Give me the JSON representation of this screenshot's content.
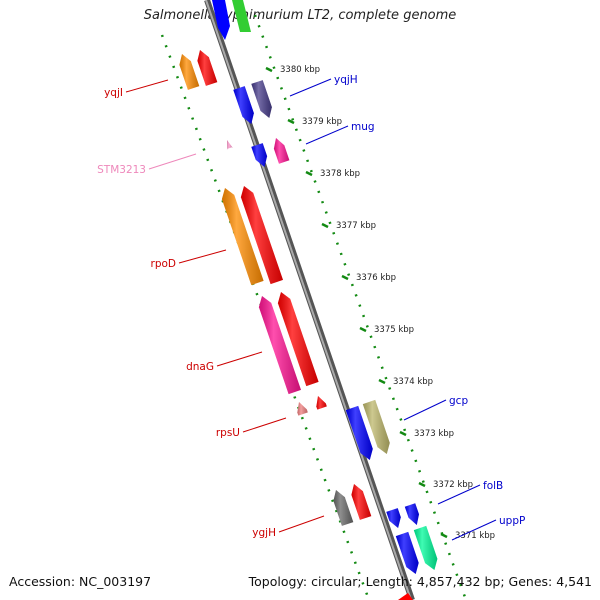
{
  "header": {
    "title": "Salmonella typhimurium LT2, complete genome"
  },
  "footer": {
    "accession": "Accession: NC_003197",
    "summary": "Topology: circular; Length: 4,857,432 bp; Genes: 4,541"
  },
  "map": {
    "position_ticks": [
      "3380 kbp",
      "3379 kbp",
      "3378 kbp",
      "3377 kbp",
      "3376 kbp",
      "3375 kbp",
      "3374 kbp",
      "3373 kbp",
      "3372 kbp",
      "3371 kbp"
    ],
    "genes": [
      {
        "name": "yqjI",
        "strand": "forward",
        "color": "#ff8c00",
        "label_color": "#cc0000"
      },
      {
        "name": "yqjH",
        "strand": "reverse",
        "color": "#0000ff",
        "label_color": "#0000cc"
      },
      {
        "name": "mug",
        "strand": "reverse",
        "color": "#0000ff",
        "label_color": "#0000cc"
      },
      {
        "name": "STM3213",
        "strand": "forward",
        "color": "#ff99cc",
        "label_color": "#ee88bb"
      },
      {
        "name": "rpoD",
        "strand": "forward",
        "color": "#ff8c00",
        "label_color": "#cc0000"
      },
      {
        "name": "dnaG",
        "strand": "forward",
        "color": "#ff1493",
        "label_color": "#cc0000"
      },
      {
        "name": "rpsU",
        "strand": "forward",
        "color": "#f08080",
        "label_color": "#cc0000"
      },
      {
        "name": "gcp",
        "strand": "reverse",
        "color": "#bdb76b",
        "label_color": "#0000cc"
      },
      {
        "name": "folB",
        "strand": "reverse",
        "color": "#0000ff",
        "label_color": "#0000cc"
      },
      {
        "name": "ygjH",
        "strand": "forward",
        "color": "#696969",
        "label_color": "#cc0000"
      },
      {
        "name": "uppP",
        "strand": "reverse",
        "color": "#00fa9a",
        "label_color": "#0000cc"
      }
    ]
  }
}
